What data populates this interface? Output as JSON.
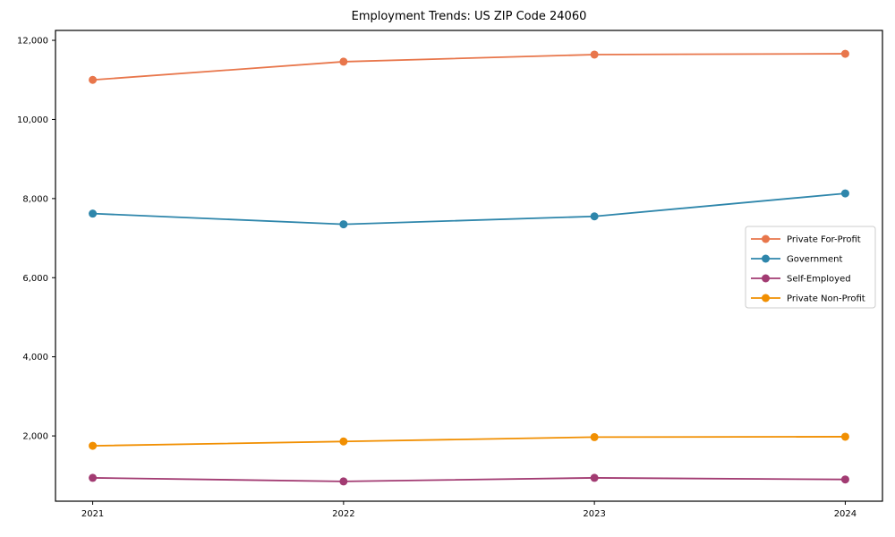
{
  "figure": {
    "background": "#ffffff",
    "axis_color": "#000000",
    "tick_label_color": "#000000",
    "legend_border_color": "#cccccc",
    "legend_background": "#ffffff"
  },
  "chart_data": {
    "type": "line",
    "title": "Employment Trends: US ZIP Code 24060",
    "xlabel": "",
    "ylabel": "",
    "categories": [
      "2021",
      "2022",
      "2023",
      "2024"
    ],
    "series": [
      {
        "name": "Private For-Profit",
        "color": "#E8764B",
        "values": [
          11000,
          11460,
          11640,
          11660
        ]
      },
      {
        "name": "Government",
        "color": "#2E86AB",
        "values": [
          7620,
          7350,
          7550,
          8130
        ]
      },
      {
        "name": "Self-Employed",
        "color": "#A23B72",
        "values": [
          940,
          850,
          940,
          900
        ]
      },
      {
        "name": "Private Non-Profit",
        "color": "#F18F01",
        "values": [
          1750,
          1860,
          1970,
          1980
        ]
      }
    ],
    "ylim": [
      350,
      12250
    ],
    "yticks": [
      2000,
      4000,
      6000,
      8000,
      10000,
      12000
    ],
    "ytick_labels": [
      "2,000",
      "4,000",
      "6,000",
      "8,000",
      "10,000",
      "12,000"
    ],
    "grid": false,
    "marker": "circle",
    "legend_position": "center-right",
    "legend_entries": [
      "Private For-Profit",
      "Government",
      "Self-Employed",
      "Private Non-Profit"
    ]
  }
}
